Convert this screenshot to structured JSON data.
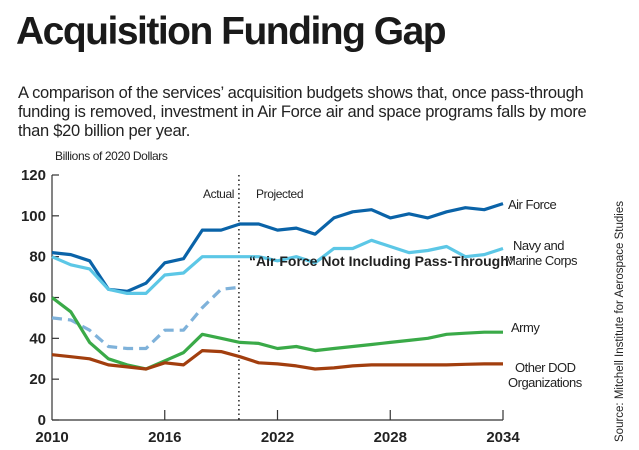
{
  "title": "Acquisition Funding Gap",
  "subtitle": "A comparison of the services’ acquisition budgets shows that, once pass-through funding is removed, investment in Air Force air and space programs falls by more than $20 billion per year.",
  "source": "Source:  Mitchell Institute for Aerospace Studies",
  "chart_data": {
    "type": "line",
    "ylabel": "Billions of 2020 Dollars",
    "xlim": [
      2010,
      2034
    ],
    "ylim": [
      0,
      120
    ],
    "x_ticks": [
      2010,
      2016,
      2022,
      2028,
      2034
    ],
    "y_ticks": [
      0,
      20,
      40,
      60,
      80,
      100,
      120
    ],
    "grid": false,
    "annotations": {
      "actual": "Actual",
      "projected": "Projected",
      "divider_year": 2020
    },
    "x": [
      2010,
      2011,
      2012,
      2013,
      2014,
      2015,
      2016,
      2017,
      2018,
      2019,
      2020,
      2021,
      2022,
      2023,
      2024,
      2025,
      2026,
      2027,
      2028,
      2029,
      2030,
      2031,
      2032,
      2033,
      2034
    ],
    "series": [
      {
        "name": "Air Force",
        "color": "#0a63a8",
        "dashed": false,
        "values": [
          82,
          81,
          78,
          64,
          63,
          67,
          77,
          79,
          93,
          93,
          96,
          96,
          93,
          94,
          91,
          99,
          102,
          103,
          99,
          101,
          99,
          102,
          104,
          103,
          106
        ]
      },
      {
        "name": "Navy and Marine Corps",
        "color": "#5cc7e6",
        "dashed": false,
        "values": [
          80,
          76,
          74,
          64,
          62,
          62,
          71,
          72,
          80,
          80,
          80,
          80,
          78,
          80,
          77,
          84,
          84,
          88,
          85,
          82,
          83,
          85,
          80,
          81,
          84
        ]
      },
      {
        "name": "“Air Force Not Including Pass-Through”",
        "color": "#7fb2da",
        "dashed": true,
        "values": [
          50,
          49,
          44,
          36,
          35,
          35,
          44,
          44,
          55,
          64,
          65,
          null,
          null,
          null,
          null,
          null,
          null,
          null,
          null,
          null,
          null,
          null,
          null,
          null,
          null
        ]
      },
      {
        "name": "Army",
        "color": "#3aaa48",
        "dashed": false,
        "values": [
          60,
          53,
          38,
          30,
          27,
          25,
          29,
          33,
          42,
          40,
          38,
          37.5,
          35,
          36,
          34,
          35,
          36,
          37,
          38,
          39,
          40,
          42,
          42.5,
          43,
          43
        ]
      },
      {
        "name": "Other DOD Organizations",
        "color": "#a23e0e",
        "dashed": false,
        "values": [
          32,
          31,
          30,
          27,
          26,
          25,
          28,
          27,
          34,
          33.5,
          31,
          28,
          27.5,
          26.5,
          25,
          25.5,
          26.5,
          27,
          27,
          27,
          27,
          27,
          27.3,
          27.5,
          27.5
        ]
      }
    ]
  }
}
